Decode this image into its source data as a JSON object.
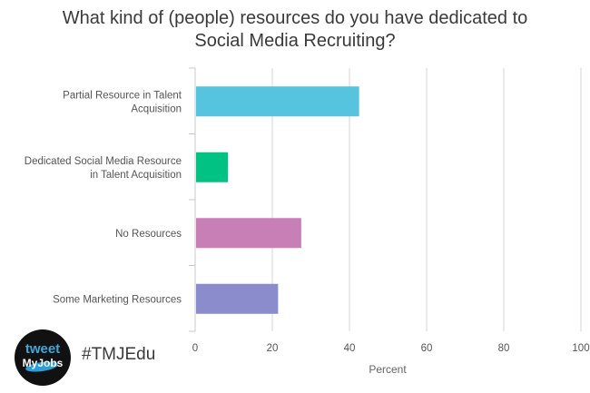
{
  "chart_data": {
    "type": "bar",
    "orientation": "horizontal",
    "title_lines": [
      "What kind of (people) resources do you have dedicated to",
      "Social Media Recruiting?"
    ],
    "categories": [
      [
        "Partial Resource in Talent",
        "Acquisition"
      ],
      [
        "Dedicated Social Media Resource",
        "in Talent Acquisition"
      ],
      [
        "No Resources"
      ],
      [
        "Some Marketing Resources"
      ]
    ],
    "values": [
      42.5,
      8.5,
      27.5,
      21.5
    ],
    "colors": [
      "#56c4df",
      "#00c383",
      "#c87fb5",
      "#8a8ccc"
    ],
    "xlabel": "Percent",
    "xlim": [
      0,
      100
    ],
    "xticks": [
      0,
      20,
      40,
      60,
      80,
      100
    ],
    "grid": true
  },
  "branding": {
    "logo_line1": "tweet",
    "logo_line2": "MyJobs",
    "hashtag": "#TMJEdu"
  }
}
